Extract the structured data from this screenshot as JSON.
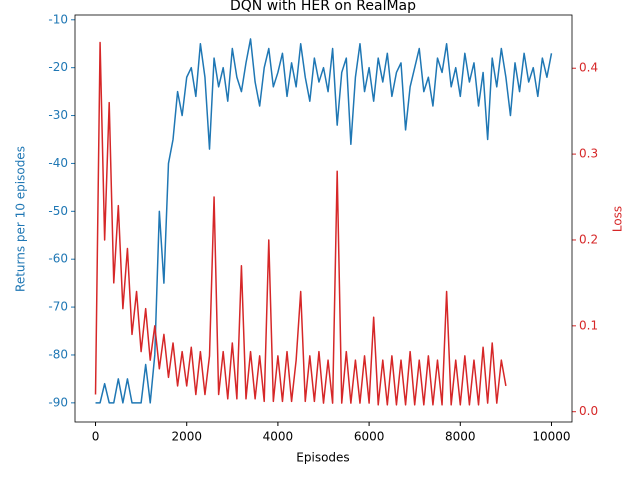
{
  "chart_data": {
    "type": "line",
    "title": "DQN with HER on RealMap",
    "xlabel": "Episodes",
    "ylabel": "Returns per 10 episodes",
    "y2label": "Loss",
    "xlim": [
      -450,
      10450
    ],
    "xticks": [
      0,
      2000,
      4000,
      6000,
      8000,
      10000
    ],
    "ylim": [
      -94,
      -9
    ],
    "yticks": [
      -90,
      -80,
      -70,
      -60,
      -50,
      -40,
      -30,
      -20,
      -10
    ],
    "y2lim": [
      -0.012,
      0.462
    ],
    "y2ticks": [
      {
        "value": 0,
        "label": "0.0"
      },
      {
        "value": 0.1,
        "label": "0.1"
      },
      {
        "value": 0.2,
        "label": "0.2"
      },
      {
        "value": 0.3,
        "label": "0.3"
      },
      {
        "value": 0.4,
        "label": "0.4"
      }
    ],
    "series": [
      {
        "name": "Returns per 10 episodes",
        "color": "#1f77b4",
        "axis": "y",
        "x": [
          0,
          100,
          200,
          300,
          400,
          500,
          600,
          700,
          800,
          900,
          1000,
          1100,
          1200,
          1300,
          1400,
          1500,
          1600,
          1700,
          1800,
          1900,
          2000,
          2100,
          2200,
          2300,
          2400,
          2500,
          2600,
          2700,
          2800,
          2900,
          3000,
          3100,
          3200,
          3300,
          3400,
          3500,
          3600,
          3700,
          3800,
          3900,
          4000,
          4100,
          4200,
          4300,
          4400,
          4500,
          4600,
          4700,
          4800,
          4900,
          5000,
          5100,
          5200,
          5300,
          5400,
          5500,
          5600,
          5700,
          5800,
          5900,
          6000,
          6100,
          6200,
          6300,
          6400,
          6500,
          6600,
          6700,
          6800,
          6900,
          7000,
          7100,
          7200,
          7300,
          7400,
          7500,
          7600,
          7700,
          7800,
          7900,
          8000,
          8100,
          8200,
          8300,
          8400,
          8500,
          8600,
          8700,
          8800,
          8900,
          9000,
          9100,
          9200,
          9300,
          9400,
          9500,
          9600,
          9700,
          9800,
          9900,
          10000
        ],
        "values": [
          -90,
          -90,
          -86,
          -90,
          -90,
          -85,
          -90,
          -85,
          -90,
          -90,
          -90,
          -82,
          -90,
          -80,
          -50,
          -65,
          -40,
          -35,
          -25,
          -30,
          -22,
          -20,
          -26,
          -15,
          -22,
          -37,
          -18,
          -24,
          -20,
          -27,
          -16,
          -22,
          -25,
          -19,
          -14,
          -23,
          -28,
          -20,
          -16,
          -24,
          -21,
          -17,
          -26,
          -19,
          -24,
          -15,
          -22,
          -27,
          -18,
          -23,
          -20,
          -25,
          -16,
          -32,
          -21,
          -18,
          -36,
          -22,
          -15,
          -25,
          -20,
          -27,
          -18,
          -23,
          -17,
          -26,
          -21,
          -19,
          -33,
          -24,
          -20,
          -16,
          -25,
          -22,
          -28,
          -18,
          -21,
          -15,
          -24,
          -20,
          -26,
          -17,
          -23,
          -19,
          -28,
          -21,
          -35,
          -18,
          -24,
          -16,
          -22,
          -30,
          -19,
          -25,
          -17,
          -23,
          -20,
          -26,
          -18,
          -22,
          -17
        ]
      },
      {
        "name": "Loss",
        "color": "#d62728",
        "axis": "y2",
        "x": [
          0,
          100,
          200,
          300,
          400,
          500,
          600,
          700,
          800,
          900,
          1000,
          1100,
          1200,
          1300,
          1400,
          1500,
          1600,
          1700,
          1800,
          1900,
          2000,
          2100,
          2200,
          2300,
          2400,
          2500,
          2600,
          2700,
          2800,
          2900,
          3000,
          3100,
          3200,
          3300,
          3400,
          3500,
          3600,
          3700,
          3800,
          3900,
          4000,
          4100,
          4200,
          4300,
          4400,
          4500,
          4600,
          4700,
          4800,
          4900,
          5000,
          5100,
          5200,
          5300,
          5400,
          5500,
          5600,
          5700,
          5800,
          5900,
          6000,
          6100,
          6200,
          6300,
          6400,
          6500,
          6600,
          6700,
          6800,
          6900,
          7000,
          7100,
          7200,
          7300,
          7400,
          7500,
          7600,
          7700,
          7800,
          7900,
          8000,
          8100,
          8200,
          8300,
          8400,
          8500,
          8600,
          8700,
          8800,
          8900,
          9000
        ],
        "values": [
          0.02,
          0.43,
          0.2,
          0.36,
          0.15,
          0.24,
          0.12,
          0.19,
          0.09,
          0.14,
          0.07,
          0.12,
          0.06,
          0.1,
          0.05,
          0.09,
          0.04,
          0.08,
          0.03,
          0.07,
          0.03,
          0.075,
          0.02,
          0.07,
          0.02,
          0.065,
          0.25,
          0.02,
          0.07,
          0.015,
          0.08,
          0.015,
          0.17,
          0.015,
          0.07,
          0.015,
          0.065,
          0.012,
          0.2,
          0.012,
          0.065,
          0.012,
          0.07,
          0.012,
          0.06,
          0.14,
          0.012,
          0.065,
          0.012,
          0.07,
          0.01,
          0.06,
          0.01,
          0.28,
          0.01,
          0.07,
          0.01,
          0.06,
          0.01,
          0.065,
          0.01,
          0.11,
          0.008,
          0.06,
          0.008,
          0.065,
          0.008,
          0.06,
          0.008,
          0.07,
          0.008,
          0.06,
          0.008,
          0.065,
          0.008,
          0.06,
          0.008,
          0.14,
          0.008,
          0.06,
          0.008,
          0.065,
          0.008,
          0.06,
          0.008,
          0.075,
          0.01,
          0.08,
          0.01,
          0.06,
          0.03
        ]
      }
    ]
  }
}
